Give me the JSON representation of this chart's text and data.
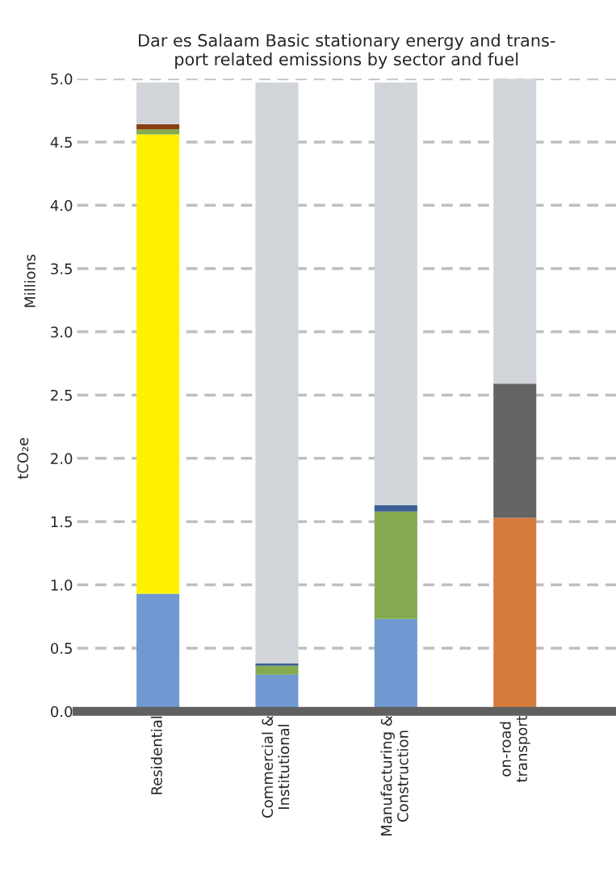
{
  "chart_data": {
    "type": "bar",
    "stacked": true,
    "title": "Dar es Salaam Basic stationary energy and trans-\nport related emissions by sector and fuel",
    "ylabel": "tCO₂e",
    "annotations": [
      "Millions"
    ],
    "categories": [
      "Residential",
      "Commercial &\nInstitutional",
      "Manufacturing &\nConstruction",
      "on-road\ntransport"
    ],
    "series": [
      {
        "color": "#6f99d0",
        "values": [
          0.93,
          0.29,
          0.73,
          0
        ]
      },
      {
        "color": "#d57b3a",
        "values": [
          0,
          0,
          0,
          1.53
        ]
      },
      {
        "color": "#fff200",
        "values": [
          3.63,
          0,
          0,
          0
        ]
      },
      {
        "color": "#646464",
        "values": [
          0,
          0,
          0,
          1.06
        ]
      },
      {
        "color": "#84ab4f",
        "values": [
          0.04,
          0.07,
          0.85,
          0
        ]
      },
      {
        "color": "#3e5f95",
        "values": [
          0,
          0.02,
          0.05,
          0
        ]
      },
      {
        "color": "#8b3e12",
        "values": [
          0.04,
          0,
          0,
          0
        ]
      },
      {
        "color": "#d1d4d9",
        "values": [
          0.33,
          4.59,
          3.34,
          2.41
        ]
      }
    ],
    "ylim": [
      0,
      5.0
    ],
    "yticks": [
      {
        "value": 0,
        "label": "0.0"
      },
      0.5,
      {
        "value": 1,
        "label": "1.0"
      },
      1.5,
      {
        "value": 2,
        "label": "2.0"
      },
      2.5,
      {
        "value": 3,
        "label": "3.0"
      },
      3.5,
      {
        "value": 4,
        "label": "4.0"
      },
      4.5,
      {
        "value": 5,
        "label": "5.0"
      }
    ],
    "grid": "y",
    "legend": false
  }
}
